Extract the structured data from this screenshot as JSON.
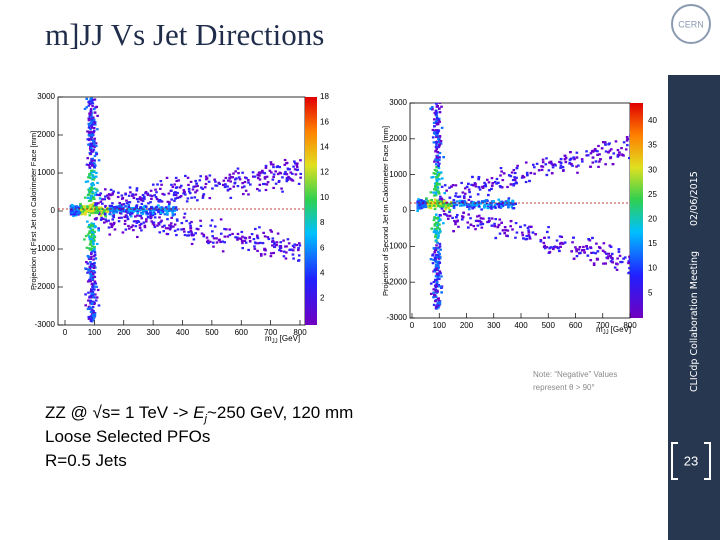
{
  "title": "m]JJ Vs Jet Directions",
  "logo_text": "CERN",
  "plots": [
    {
      "y_label": "Projection of First Jet on Calorimeter Face [mm]",
      "x_label": {
        "main": "m",
        "sub": "JJ",
        "unit": "[GeV]"
      },
      "x_ticks": [
        0,
        100,
        200,
        300,
        400,
        500,
        600,
        700,
        800
      ],
      "y_ticks": [
        3000,
        2000,
        1000,
        0,
        -1000,
        -2000,
        -3000
      ],
      "colorbar_ticks": [
        18,
        16,
        14,
        12,
        10,
        8,
        6,
        4,
        2
      ]
    },
    {
      "y_label": "Projection of Second Jet on Calorimeter Face [mm]",
      "x_label": {
        "main": "m",
        "sub": "JJ",
        "unit": "[GeV]"
      },
      "x_ticks": [
        0,
        100,
        200,
        300,
        400,
        500,
        600,
        700,
        800
      ],
      "y_ticks": [
        3000,
        2000,
        1000,
        0,
        -1000,
        -2000,
        -3000
      ],
      "colorbar_ticks": [
        40,
        35,
        30,
        25,
        20,
        15,
        10,
        5
      ]
    }
  ],
  "note": [
    "Note: “Negative” Values",
    "represent θ > 90°"
  ],
  "bullets": [
    [
      "ZZ @ ",
      "√s",
      "= 1 TeV -> ",
      "E",
      "j",
      "~250 GeV, 120 mm"
    ],
    "Loose Selected PFOs",
    "R=0.5 Jets"
  ],
  "sidebar": {
    "meeting": "CLICdp Collaboration Meeting",
    "date": "02/06/2015",
    "page": "23"
  }
}
